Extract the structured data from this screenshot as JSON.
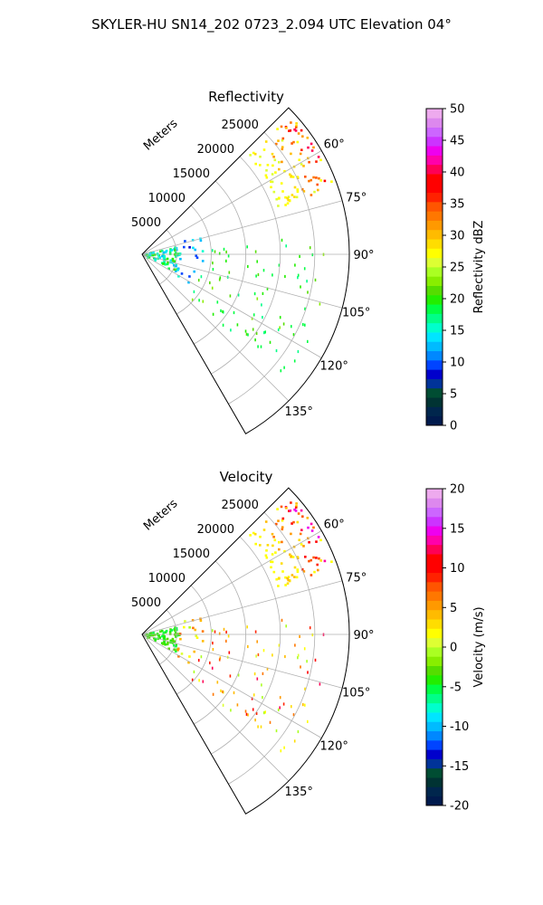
{
  "suptitle": "SKYLER-HU  SN14_202  0723_2.094 UTC Elevation 04°",
  "chart_data": [
    {
      "type": "heatmap",
      "title": "Reflectivity",
      "projection": "polar-sector",
      "theta_range_deg": [
        45,
        150
      ],
      "theta_ticks": [
        60,
        75,
        90,
        105,
        120,
        135
      ],
      "theta_tick_labels": [
        "60°",
        "75°",
        "90°",
        "105°",
        "120°",
        "135°"
      ],
      "r_range": [
        0,
        30000
      ],
      "r_ticks": [
        5000,
        10000,
        15000,
        20000,
        25000
      ],
      "r_tick_labels": [
        "5000",
        "10000",
        "15000",
        "20000",
        "25000"
      ],
      "r_label": "Meters",
      "grid": true,
      "colorbar": {
        "label": "Reflectivity dBZ",
        "range": [
          0,
          50
        ],
        "ticks": [
          0,
          5,
          10,
          15,
          20,
          25,
          30,
          35,
          40,
          45,
          50
        ],
        "tick_labels": [
          "0",
          "5",
          "10",
          "15",
          "20",
          "25",
          "30",
          "35",
          "40",
          "45",
          "50"
        ]
      },
      "echo_regions": [
        {
          "r": [
            20500,
            29500
          ],
          "theta": [
            47,
            71
          ],
          "value_range": [
            18,
            42
          ]
        },
        {
          "r": [
            200,
            5500
          ],
          "theta": [
            78,
            118
          ],
          "value_range": [
            12,
            22
          ]
        },
        {
          "r": [
            5500,
            9500
          ],
          "theta": [
            70,
            122
          ],
          "value_range": [
            5,
            16
          ]
        },
        {
          "r": [
            9000,
            28000
          ],
          "theta": [
            84,
            132
          ],
          "value_range": [
            17,
            23
          ]
        }
      ]
    },
    {
      "type": "heatmap",
      "title": "Velocity",
      "projection": "polar-sector",
      "theta_range_deg": [
        45,
        150
      ],
      "theta_ticks": [
        60,
        75,
        90,
        105,
        120,
        135
      ],
      "theta_tick_labels": [
        "60°",
        "75°",
        "90°",
        "105°",
        "120°",
        "135°"
      ],
      "r_range": [
        0,
        30000
      ],
      "r_ticks": [
        5000,
        10000,
        15000,
        20000,
        25000
      ],
      "r_tick_labels": [
        "5000",
        "10000",
        "15000",
        "20000",
        "25000"
      ],
      "r_label": "Meters",
      "grid": true,
      "colorbar": {
        "label": "Velocity (m/s)",
        "range": [
          -20,
          20
        ],
        "ticks": [
          -20,
          -15,
          -10,
          -5,
          0,
          5,
          10,
          15,
          20
        ],
        "tick_labels": [
          "-20",
          "-15",
          "-10",
          "-5",
          "0",
          "5",
          "10",
          "15",
          "20"
        ]
      },
      "echo_regions": [
        {
          "r": [
            20500,
            29500
          ],
          "theta": [
            47,
            71
          ],
          "value_range": [
            -6,
            16
          ]
        },
        {
          "r": [
            200,
            5500
          ],
          "theta": [
            78,
            118
          ],
          "value_range": [
            -5,
            -2
          ]
        },
        {
          "r": [
            5500,
            9500
          ],
          "theta": [
            70,
            122
          ],
          "value_range": [
            -3,
            8
          ]
        },
        {
          "r": [
            9000,
            28000
          ],
          "theta": [
            84,
            132
          ],
          "value_range": [
            -1,
            12
          ]
        }
      ]
    }
  ]
}
